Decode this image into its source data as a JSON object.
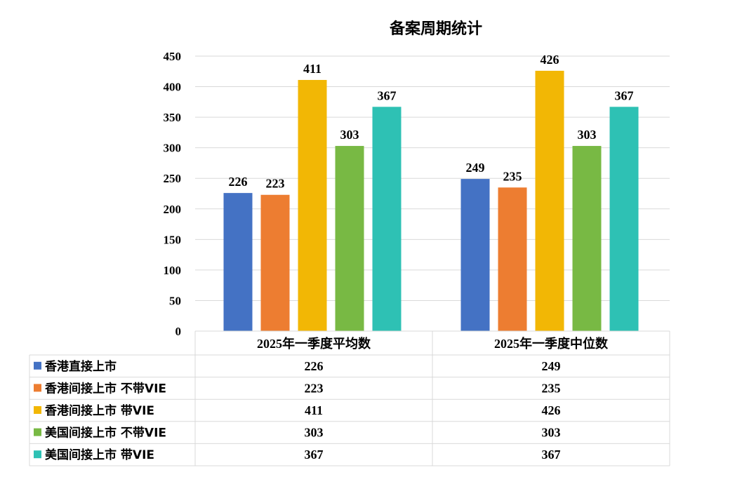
{
  "chart_data": {
    "type": "bar",
    "title": "备案周期统计",
    "categories": [
      "2025年一季度平均数",
      "2025年一季度中位数"
    ],
    "ylim": [
      0,
      450
    ],
    "yticks": [
      0,
      50,
      100,
      150,
      200,
      250,
      300,
      350,
      400,
      450
    ],
    "grid": true,
    "legend_placement": "data-table-left",
    "series": [
      {
        "name": "香港直接上市",
        "color": "#4472C4",
        "values": [
          226,
          249
        ]
      },
      {
        "name": "香港间接上市 不带VIE",
        "color": "#ED7D31",
        "values": [
          223,
          235
        ]
      },
      {
        "name": "香港间接上市 带VIE",
        "color": "#F2B705",
        "values": [
          411,
          426
        ]
      },
      {
        "name": "美国间接上市 不带VIE",
        "color": "#78B944",
        "values": [
          303,
          303
        ]
      },
      {
        "name": "美国间接上市 带VIE",
        "color": "#2EC1B4",
        "values": [
          367,
          367
        ]
      }
    ]
  }
}
